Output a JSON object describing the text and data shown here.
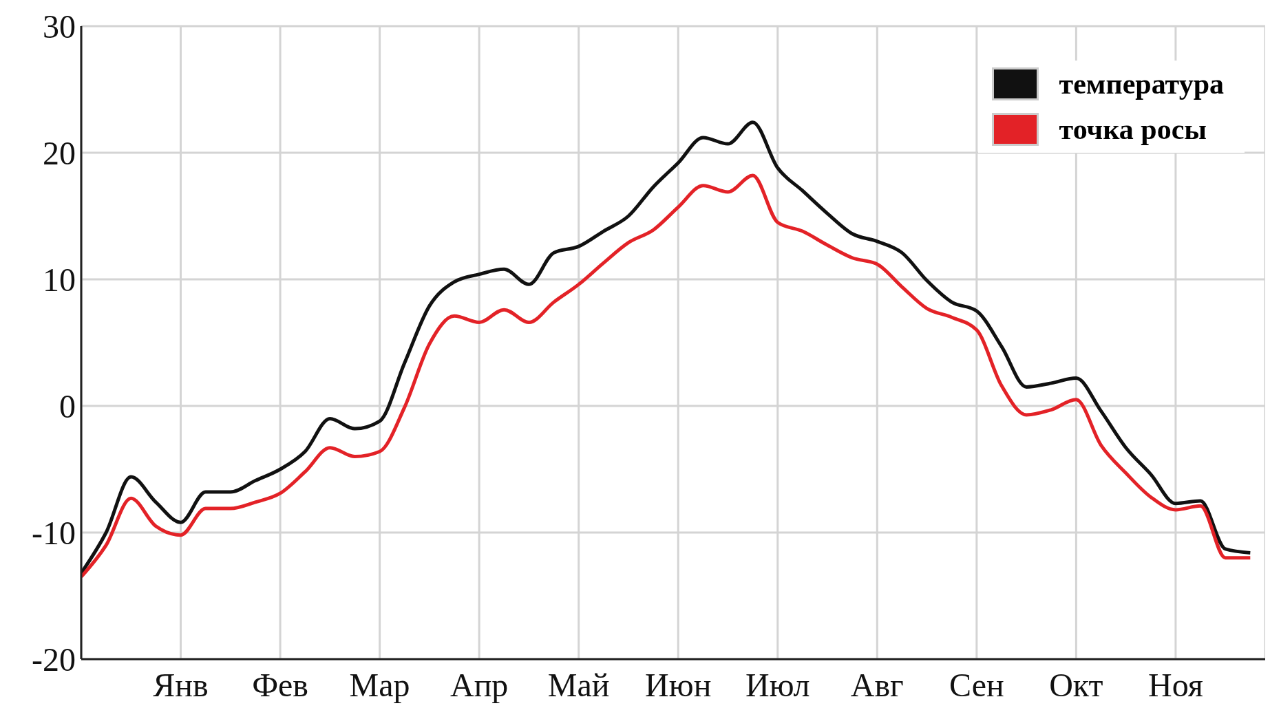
{
  "chart_data": {
    "type": "line",
    "categories": [
      null,
      null,
      null,
      null,
      "Янв",
      null,
      null,
      null,
      "Фев",
      null,
      null,
      null,
      "Мар",
      null,
      null,
      null,
      "Апр",
      null,
      null,
      null,
      "Май",
      null,
      null,
      null,
      "Июн",
      null,
      null,
      null,
      "Июл",
      null,
      null,
      null,
      "Авг",
      null,
      null,
      null,
      "Сен",
      null,
      null,
      null,
      "Окт",
      null,
      null,
      null,
      "Ноя",
      null,
      null,
      null
    ],
    "ylim": [
      -20,
      30
    ],
    "yticks": [
      -20,
      -10,
      0,
      10,
      20,
      30
    ],
    "grid": true,
    "legend": "top right",
    "line_style": "solid",
    "series": [
      {
        "name": "температура",
        "color": "#111111",
        "values": [
          -13.2,
          -10.0,
          -5.6,
          -7.6,
          -9.2,
          -6.8,
          -6.8,
          -5.9,
          -5.0,
          -3.6,
          -1.0,
          -1.8,
          -1.2,
          3.4,
          7.9,
          9.8,
          10.4,
          10.8,
          9.6,
          12.1,
          12.6,
          13.8,
          15.0,
          17.3,
          19.2,
          21.2,
          20.7,
          22.4,
          18.8,
          17.0,
          15.2,
          13.6,
          13.0,
          12.1,
          9.9,
          8.2,
          7.5,
          4.7,
          1.5,
          1.8,
          2.2,
          -0.4,
          -3.3,
          -5.4,
          -7.7,
          -7.5,
          -11.3,
          -11.6
        ]
      },
      {
        "name": "точка росы",
        "color": "#e32227",
        "values": [
          -13.5,
          -11.0,
          -7.3,
          -9.5,
          -10.2,
          -8.1,
          -8.1,
          -7.6,
          -6.9,
          -5.2,
          -3.3,
          -4.0,
          -3.6,
          -0.1,
          4.9,
          7.1,
          6.6,
          7.6,
          6.6,
          8.2,
          9.6,
          11.3,
          12.9,
          13.9,
          15.7,
          17.4,
          16.9,
          18.2,
          14.5,
          13.8,
          12.7,
          11.7,
          11.2,
          9.4,
          7.7,
          7.0,
          6.0,
          1.6,
          -0.7,
          -0.3,
          0.5,
          -3.1,
          -5.3,
          -7.2,
          -8.2,
          -7.9,
          -12.0,
          -12.0
        ]
      }
    ]
  }
}
